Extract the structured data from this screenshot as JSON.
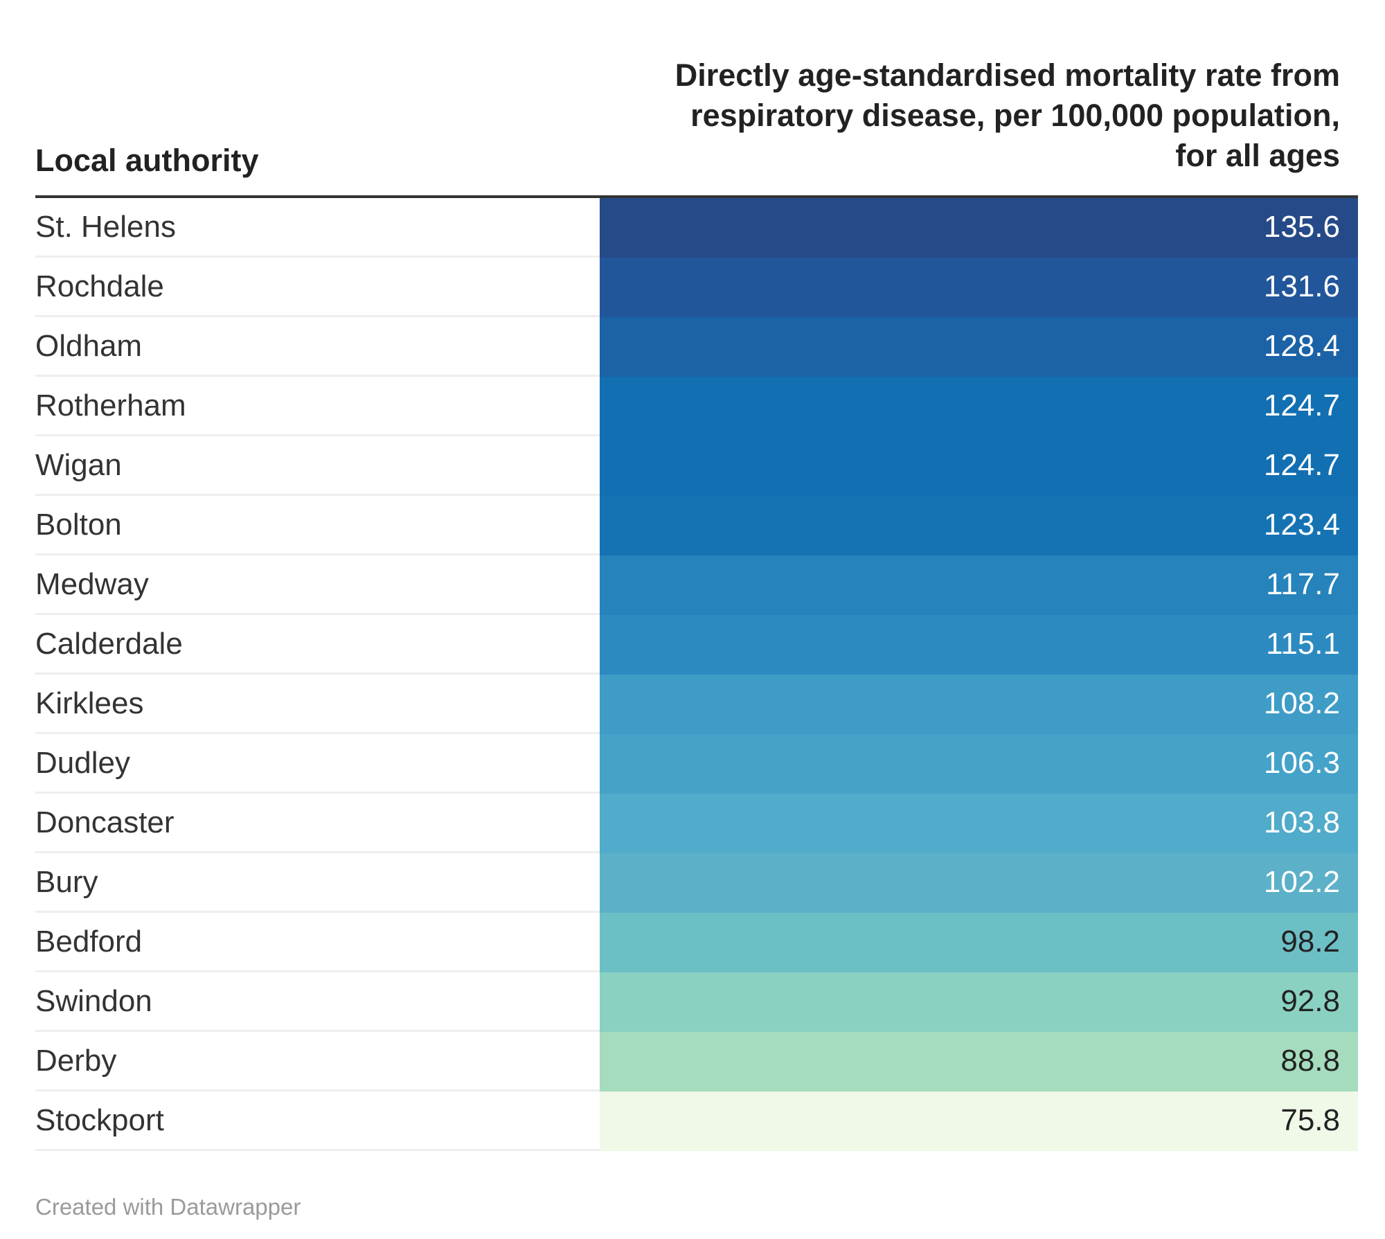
{
  "chart_data": {
    "type": "table",
    "columns": [
      "Local authority",
      "Directly age-standardised mortality rate from respiratory disease, per 100,000 population, for all ages"
    ],
    "rows": [
      {
        "authority": "St. Helens",
        "value": "135.6",
        "color": "#264a88",
        "text_color": "#ffffff"
      },
      {
        "authority": "Rochdale",
        "value": "131.6",
        "color": "#22569a",
        "text_color": "#ffffff"
      },
      {
        "authority": "Oldham",
        "value": "128.4",
        "color": "#1b62a6",
        "text_color": "#ffffff"
      },
      {
        "authority": "Rotherham",
        "value": "124.7",
        "color": "#126fb1",
        "text_color": "#ffffff"
      },
      {
        "authority": "Wigan",
        "value": "124.7",
        "color": "#126fb1",
        "text_color": "#ffffff"
      },
      {
        "authority": "Bolton",
        "value": "123.4",
        "color": "#1573b4",
        "text_color": "#ffffff"
      },
      {
        "authority": "Medway",
        "value": "117.7",
        "color": "#2683bb",
        "text_color": "#ffffff"
      },
      {
        "authority": "Calderdale",
        "value": "115.1",
        "color": "#2c8ac0",
        "text_color": "#ffffff"
      },
      {
        "authority": "Kirklees",
        "value": "108.2",
        "color": "#3f9cc7",
        "text_color": "#ffffff"
      },
      {
        "authority": "Dudley",
        "value": "106.3",
        "color": "#45a2c9",
        "text_color": "#ffffff"
      },
      {
        "authority": "Doncaster",
        "value": "103.8",
        "color": "#51abca",
        "text_color": "#ffffff"
      },
      {
        "authority": "Bury",
        "value": "102.2",
        "color": "#5cb1c8",
        "text_color": "#ffffff"
      },
      {
        "authority": "Bedford",
        "value": "98.2",
        "color": "#6dbfc6",
        "text_color": "#222222"
      },
      {
        "authority": "Swindon",
        "value": "92.8",
        "color": "#8ad1c2",
        "text_color": "#222222"
      },
      {
        "authority": "Derby",
        "value": "88.8",
        "color": "#a5dcbd",
        "text_color": "#222222"
      },
      {
        "authority": "Stockport",
        "value": "75.8",
        "color": "#f0f8e8",
        "text_color": "#222222"
      }
    ]
  },
  "header": {
    "left": "Local authority",
    "right_lines": [
      "Directly age-standardised mortality rate from",
      "respiratory disease, per 100,000 population,",
      "for all ages"
    ]
  },
  "footer": {
    "credit": "Created with Datawrapper"
  }
}
